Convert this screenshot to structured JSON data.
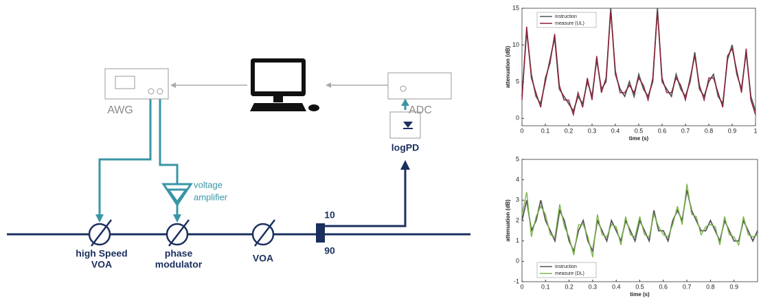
{
  "diagram": {
    "labels": {
      "awg": "AWG",
      "adc": "ADC",
      "logpd": "logPD",
      "amp1": "voltage",
      "amp2": "amplifier",
      "hsvoa1": "high Speed",
      "hsvoa2": "VOA",
      "pm1": "phase",
      "pm2": "modulator",
      "voa": "VOA",
      "c10": "10",
      "c90": "90"
    }
  },
  "chart_data": [
    {
      "type": "line",
      "x_label": "time (s)",
      "y_label": "attenuation (dB)",
      "legend": "upper left",
      "x": [
        0,
        0.02,
        0.04,
        0.06,
        0.08,
        0.1,
        0.12,
        0.14,
        0.16,
        0.18,
        0.2,
        0.22,
        0.24,
        0.26,
        0.28,
        0.3,
        0.32,
        0.34,
        0.36,
        0.38,
        0.4,
        0.42,
        0.44,
        0.46,
        0.48,
        0.5,
        0.52,
        0.54,
        0.56,
        0.58,
        0.6,
        0.62,
        0.64,
        0.66,
        0.68,
        0.7,
        0.72,
        0.74,
        0.76,
        0.78,
        0.8,
        0.82,
        0.84,
        0.86,
        0.88,
        0.9,
        0.92,
        0.94,
        0.96,
        0.98,
        1
      ],
      "series": [
        {
          "name": "instruction",
          "color": "#555555",
          "values": [
            3,
            12,
            6,
            3,
            2,
            5,
            8,
            11,
            4,
            3,
            2,
            1,
            3,
            2,
            5,
            3,
            8,
            4,
            5,
            15,
            6,
            4,
            3,
            5,
            3,
            6,
            4,
            3,
            5,
            15,
            5,
            4,
            3,
            6,
            4,
            3,
            5,
            9,
            4,
            3,
            5,
            6,
            3,
            2,
            8,
            10,
            6,
            4,
            9,
            3,
            1
          ]
        },
        {
          "name": "measure (UL)",
          "color": "#8b1e34",
          "values": [
            2.5,
            12.5,
            5.5,
            3.5,
            1.5,
            5.5,
            7.5,
            11.5,
            4.5,
            2.5,
            2.5,
            0.5,
            3.5,
            1.5,
            5.5,
            2.5,
            8.5,
            3.5,
            5.5,
            14.5,
            6.5,
            3.5,
            3.5,
            4.5,
            3.5,
            5.5,
            4.5,
            2.5,
            5.5,
            14.5,
            5.5,
            3.5,
            3.5,
            5.5,
            4.5,
            2.5,
            5.5,
            8.5,
            4.5,
            2.5,
            5.5,
            5.5,
            3.5,
            1.5,
            8.5,
            9.5,
            6.5,
            3.5,
            9.5,
            2.5,
            0.5
          ]
        }
      ],
      "xlim": [
        0,
        1
      ],
      "ylim": [
        -1,
        15
      ],
      "xticks": [
        0,
        0.1,
        0.2,
        0.3,
        0.4,
        0.5,
        0.6,
        0.7,
        0.8,
        0.9,
        1
      ],
      "yticks": [
        0,
        5,
        10,
        15
      ]
    },
    {
      "type": "line",
      "x_label": "time (s)",
      "y_label": "attenuation (dB)",
      "legend": "lower left",
      "x": [
        0,
        0.02,
        0.04,
        0.06,
        0.08,
        0.1,
        0.12,
        0.14,
        0.16,
        0.18,
        0.2,
        0.22,
        0.24,
        0.26,
        0.28,
        0.3,
        0.32,
        0.34,
        0.36,
        0.38,
        0.4,
        0.42,
        0.44,
        0.46,
        0.48,
        0.5,
        0.52,
        0.54,
        0.56,
        0.58,
        0.6,
        0.62,
        0.64,
        0.66,
        0.68,
        0.7,
        0.72,
        0.74,
        0.76,
        0.78,
        0.8,
        0.82,
        0.84,
        0.86,
        0.88,
        0.9,
        0.92,
        0.94,
        0.96,
        0.98,
        1
      ],
      "series": [
        {
          "name": "instruction",
          "color": "#555555",
          "values": [
            2,
            3,
            1.5,
            2,
            3,
            2,
            1.5,
            1,
            2.5,
            2,
            1,
            0.5,
            1.5,
            2,
            1,
            0.5,
            2,
            1.5,
            1,
            2,
            1.5,
            1,
            2,
            1.5,
            1,
            2,
            1.5,
            1,
            2.5,
            1.5,
            1.5,
            1,
            2,
            2.5,
            2,
            3.5,
            2.5,
            2,
            1.5,
            1.5,
            2,
            1.5,
            1,
            2,
            1.5,
            1,
            1,
            2,
            1.5,
            1,
            1.5
          ]
        },
        {
          "name": "measure (DL)",
          "color": "#7ab648",
          "values": [
            2.3,
            3.4,
            1.2,
            2.2,
            2.7,
            2.3,
            1.3,
            1.2,
            2.8,
            1.7,
            1.2,
            0.3,
            1.8,
            1.8,
            1.2,
            0.2,
            2.3,
            1.3,
            1.2,
            1.8,
            1.7,
            0.8,
            2.2,
            1.3,
            1.2,
            2.2,
            1.3,
            1.2,
            2.3,
            1.7,
            1.3,
            1.2,
            1.8,
            2.7,
            1.8,
            3.8,
            2.3,
            2.2,
            1.3,
            1.7,
            1.8,
            1.7,
            0.8,
            2.2,
            1.3,
            1.2,
            0.8,
            2.2,
            1.3,
            1.2,
            1.3
          ]
        }
      ],
      "xlim": [
        0,
        1
      ],
      "ylim": [
        -1,
        5
      ],
      "xticks": [
        0,
        0.1,
        0.2,
        0.3,
        0.4,
        0.5,
        0.6,
        0.7,
        0.8,
        0.9
      ],
      "yticks": [
        -1,
        0,
        1,
        2,
        3,
        4,
        5
      ]
    }
  ]
}
